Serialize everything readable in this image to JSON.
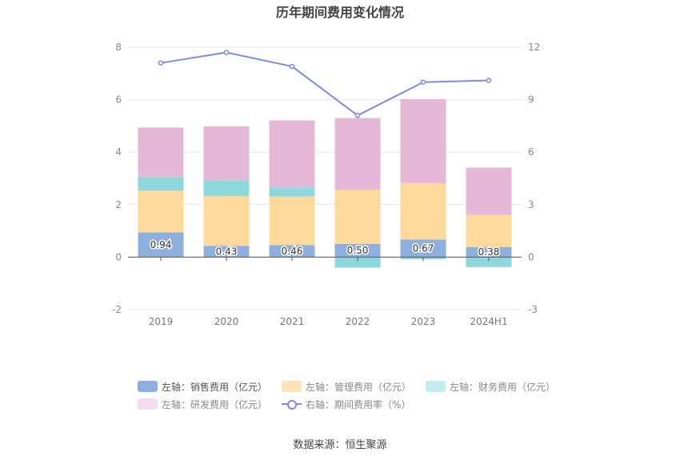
{
  "title": "历年期间费用变化情况",
  "source": "数据来源：恒生聚源",
  "chart_data": {
    "type": "bar",
    "stacked": true,
    "categories": [
      "2019",
      "2020",
      "2021",
      "2022",
      "2023",
      "2024H1"
    ],
    "left_axis": {
      "ylim": [
        -2,
        8
      ],
      "ticks": [
        "-2",
        "0",
        "2",
        "4",
        "6",
        "8"
      ]
    },
    "right_axis": {
      "ylim": [
        -3,
        12
      ],
      "ticks": [
        "-3",
        "0",
        "3",
        "6",
        "9",
        "12"
      ]
    },
    "grid": true,
    "legend_position": "bottom",
    "series": [
      {
        "name": "左轴：销售费用（亿元）",
        "type": "bar",
        "color": "#8fb0de",
        "values": [
          0.94,
          0.43,
          0.46,
          0.5,
          0.67,
          0.38
        ],
        "data_labels": [
          "0.94",
          "0.43",
          "0.46",
          "0.50",
          "0.67",
          "0.38"
        ]
      },
      {
        "name": "左轴：管理费用（亿元）",
        "type": "bar",
        "color": "#fdd99b",
        "values": [
          1.6,
          1.9,
          1.85,
          2.07,
          2.15,
          1.23
        ]
      },
      {
        "name": "左轴：财务费用（亿元）",
        "type": "bar",
        "color": "#8dd7dd",
        "values": [
          0.5,
          0.6,
          0.35,
          -0.4,
          -0.08,
          -0.38
        ]
      },
      {
        "name": "左轴：研发费用（亿元）",
        "type": "bar",
        "color": "#e6b8d8",
        "values": [
          1.9,
          2.05,
          2.55,
          2.73,
          3.2,
          1.8
        ]
      },
      {
        "name": "右轴：期间费用率（%）",
        "type": "line",
        "axis": "right",
        "color": "#8088e8",
        "values": [
          11.1,
          11.7,
          10.9,
          8.1,
          10.0,
          10.1
        ]
      }
    ]
  }
}
